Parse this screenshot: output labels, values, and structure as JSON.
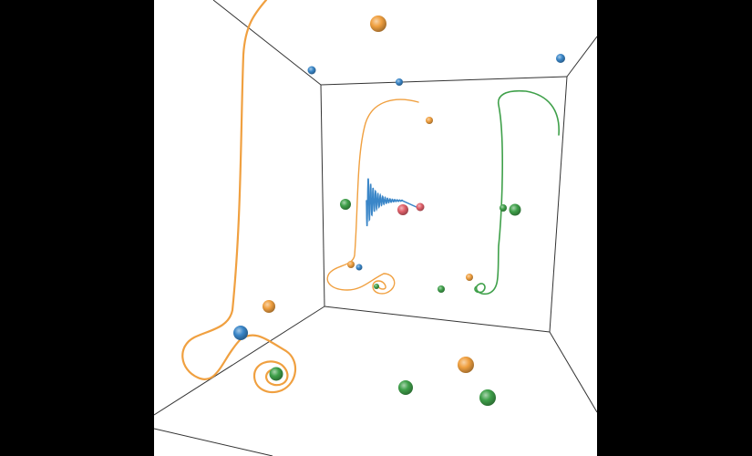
{
  "scene": {
    "palette": {
      "orange": "#f0a040",
      "blue": "#3a86c8",
      "green": "#3fa04a",
      "red": "#e0606a",
      "edge": "#333333",
      "background": "#ffffff",
      "letterbox": "#000000"
    },
    "spheres": [
      {
        "color": "orange"
      },
      {
        "color": "blue"
      },
      {
        "color": "blue"
      },
      {
        "color": "blue"
      },
      {
        "color": "orange"
      },
      {
        "color": "green"
      },
      {
        "color": "red"
      },
      {
        "color": "red"
      },
      {
        "color": "green"
      },
      {
        "color": "green"
      },
      {
        "color": "orange"
      },
      {
        "color": "blue"
      },
      {
        "color": "orange"
      },
      {
        "color": "green"
      },
      {
        "color": "orange"
      },
      {
        "color": "blue"
      },
      {
        "color": "green"
      },
      {
        "color": "orange"
      },
      {
        "color": "green"
      },
      {
        "color": "green"
      },
      {
        "color": "green"
      }
    ],
    "trajectories": [
      {
        "color": "orange"
      },
      {
        "color": "orange"
      },
      {
        "color": "green"
      },
      {
        "color": "blue"
      }
    ]
  }
}
